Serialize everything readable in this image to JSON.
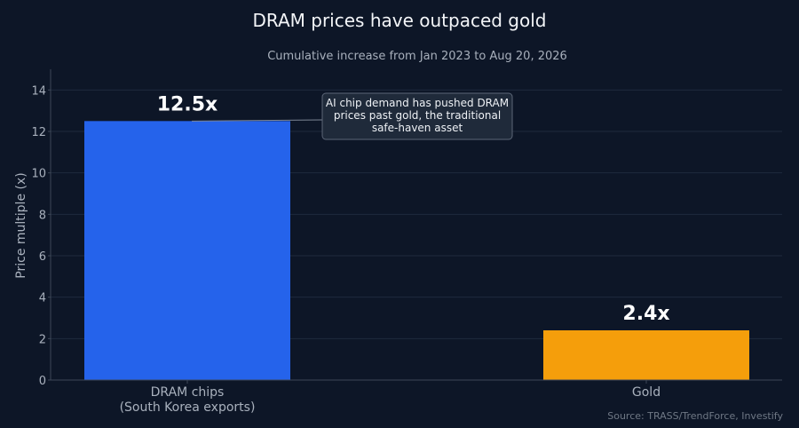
{
  "chart_data": {
    "type": "bar",
    "title": "DRAM prices have outpaced gold",
    "subtitle": "Cumulative increase from Jan 2023 to Aug 20, 2026",
    "ylabel": "Price multiple (x)",
    "xlabel": "",
    "ylim": [
      0,
      15
    ],
    "yticks": [
      0,
      2,
      4,
      6,
      8,
      10,
      12,
      14
    ],
    "grid": true,
    "categories": [
      [
        "DRAM chips",
        "(South Korea exports)"
      ],
      [
        "Gold"
      ]
    ],
    "values": [
      12.5,
      2.4
    ],
    "data_labels": [
      "12.5x",
      "2.4x"
    ],
    "colors": [
      "#2563eb",
      "#f59e0b"
    ],
    "annotation": {
      "lines": [
        "AI chip demand has pushed DRAM",
        "prices past gold, the traditional",
        "safe-haven asset"
      ],
      "target_category": 0
    },
    "source": "Source: TRASS/TrendForce, Investify"
  }
}
